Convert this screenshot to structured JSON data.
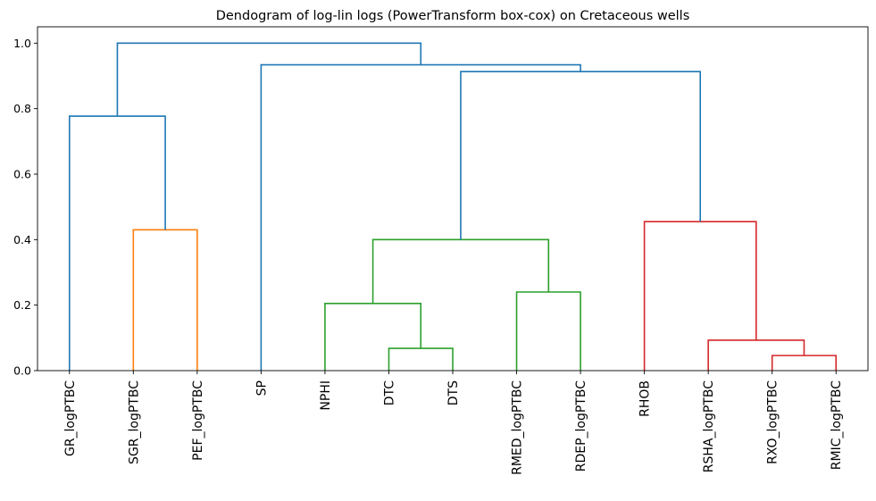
{
  "title": "Dendogram of log-lin logs (PowerTransform box-cox) on Cretaceous wells",
  "chart_data": {
    "type": "dendrogram",
    "ylim": [
      0,
      1.05
    ],
    "yticks": [
      {
        "value": 0.0,
        "label": "0.0"
      },
      {
        "value": 0.2,
        "label": "0.2"
      },
      {
        "value": 0.4,
        "label": "0.4"
      },
      {
        "value": 0.6,
        "label": "0.6"
      },
      {
        "value": 0.8,
        "label": "0.8"
      },
      {
        "value": 1.0,
        "label": "1.0"
      }
    ],
    "leaves": [
      "GR_logPTBC",
      "SGR_logPTBC",
      "PEF_logPTBC",
      "SP",
      "NPHI",
      "DTC",
      "DTS",
      "RMED_logPTBC",
      "RDEP_logPTBC",
      "RHOB",
      "RSHA_logPTBC",
      "RXO_logPTBC",
      "RMIC_logPTBC"
    ],
    "colors": {
      "C0": "#1f77b4",
      "C1": "#ff7f0e",
      "C2": "#2ca02c",
      "C3": "#d62728"
    },
    "merges": [
      {
        "left": 5,
        "right": 6,
        "height": 0.068,
        "color": "C2"
      },
      {
        "left": 11,
        "right": 12,
        "height": 0.046,
        "color": "C3"
      },
      {
        "left": 10,
        "right": 14,
        "height": 0.093,
        "color": "C3"
      },
      {
        "left": 4,
        "right": 13,
        "height": 0.205,
        "color": "C2"
      },
      {
        "left": 7,
        "right": 8,
        "height": 0.24,
        "color": "C2"
      },
      {
        "left": 16,
        "right": 17,
        "height": 0.4,
        "color": "C2"
      },
      {
        "left": 1,
        "right": 2,
        "height": 0.43,
        "color": "C1"
      },
      {
        "left": 9,
        "right": 15,
        "height": 0.455,
        "color": "C3"
      },
      {
        "left": 0,
        "right": 19,
        "height": 0.777,
        "color": "C0"
      },
      {
        "left": 18,
        "right": 20,
        "height": 0.913,
        "color": "C0"
      },
      {
        "left": 3,
        "right": 22,
        "height": 0.934,
        "color": "C0"
      },
      {
        "left": 21,
        "right": 23,
        "height": 1.0,
        "color": "C0"
      }
    ],
    "leaf_colors": [
      "C0",
      "C1",
      "C1",
      "C0",
      "C2",
      "C2",
      "C2",
      "C2",
      "C2",
      "C3",
      "C3",
      "C3",
      "C3"
    ]
  }
}
